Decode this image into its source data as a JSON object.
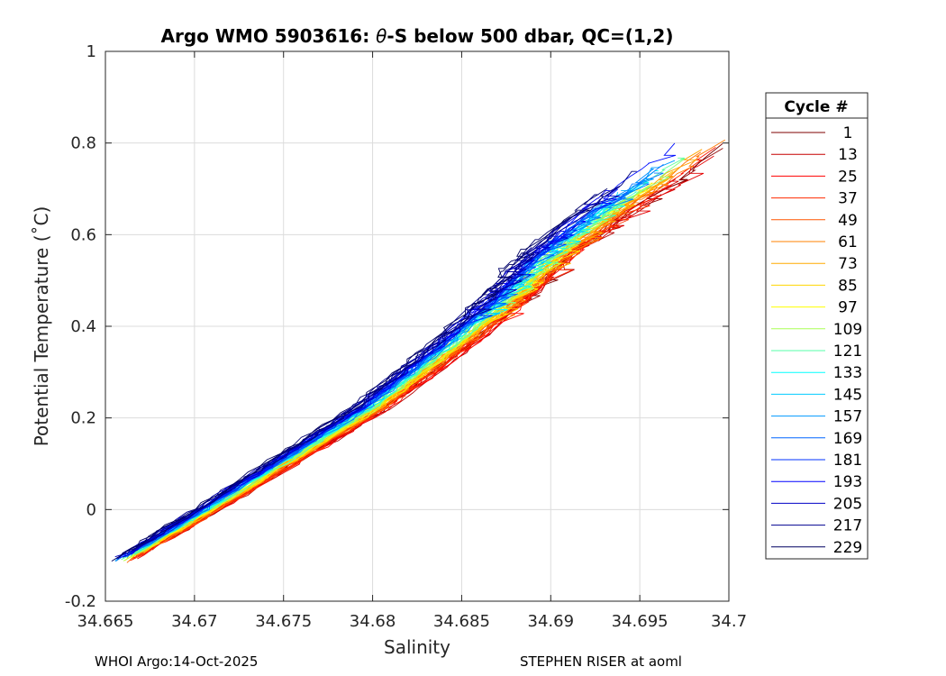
{
  "chart_data": {
    "type": "line",
    "title_prefix": "Argo WMO 5903616: ",
    "title_theta": "θ",
    "title_suffix": "-S below 500 dbar,  QC=(1,2)",
    "xlabel": "Salinity",
    "ylabel": "Potential Temperature (˚C)",
    "xlim": [
      34.665,
      34.7
    ],
    "ylim": [
      -0.2,
      1
    ],
    "xticks": [
      34.665,
      34.67,
      34.675,
      34.68,
      34.685,
      34.69,
      34.695,
      34.7
    ],
    "xtick_labels": [
      "34.665",
      "34.67",
      "34.675",
      "34.68",
      "34.685",
      "34.69",
      "34.695",
      "34.7"
    ],
    "yticks": [
      -0.2,
      0,
      0.2,
      0.4,
      0.6,
      0.8,
      1
    ],
    "ytick_labels": [
      "-0.2",
      "0",
      "0.2",
      "0.4",
      "0.6",
      "0.8",
      "1"
    ],
    "grid": true,
    "legend": {
      "title": "Cycle #",
      "position": "right-outside",
      "entries": [
        "1",
        "13",
        "25",
        "37",
        "49",
        "61",
        "73",
        "85",
        "97",
        "109",
        "121",
        "133",
        "145",
        "157",
        "169",
        "181",
        "193",
        "205",
        "217",
        "229"
      ],
      "colors": [
        "#7f0000",
        "#c60000",
        "#ff0000",
        "#ff2a00",
        "#ff5500",
        "#ff8000",
        "#ffaa00",
        "#ffd400",
        "#ffff00",
        "#aaff55",
        "#55ffaa",
        "#00ffff",
        "#00ccff",
        "#0099ff",
        "#0066ff",
        "#0033ff",
        "#0000ff",
        "#0000c6",
        "#00008f",
        "#000060"
      ]
    },
    "series_trend": {
      "description": "theta-S profiles below 500 dbar, one per cycle, colored by cycle number",
      "envelope_salinity": [
        34.6665,
        34.67,
        34.675,
        34.68,
        34.685,
        34.688,
        34.69,
        34.693,
        34.696,
        34.698
      ],
      "envelope_theta": [
        -0.1,
        -0.02,
        0.1,
        0.22,
        0.37,
        0.47,
        0.55,
        0.64,
        0.72,
        0.78
      ]
    }
  },
  "footer": {
    "left": "WHOI Argo:14-Oct-2025",
    "right": "STEPHEN RISER at aoml"
  }
}
